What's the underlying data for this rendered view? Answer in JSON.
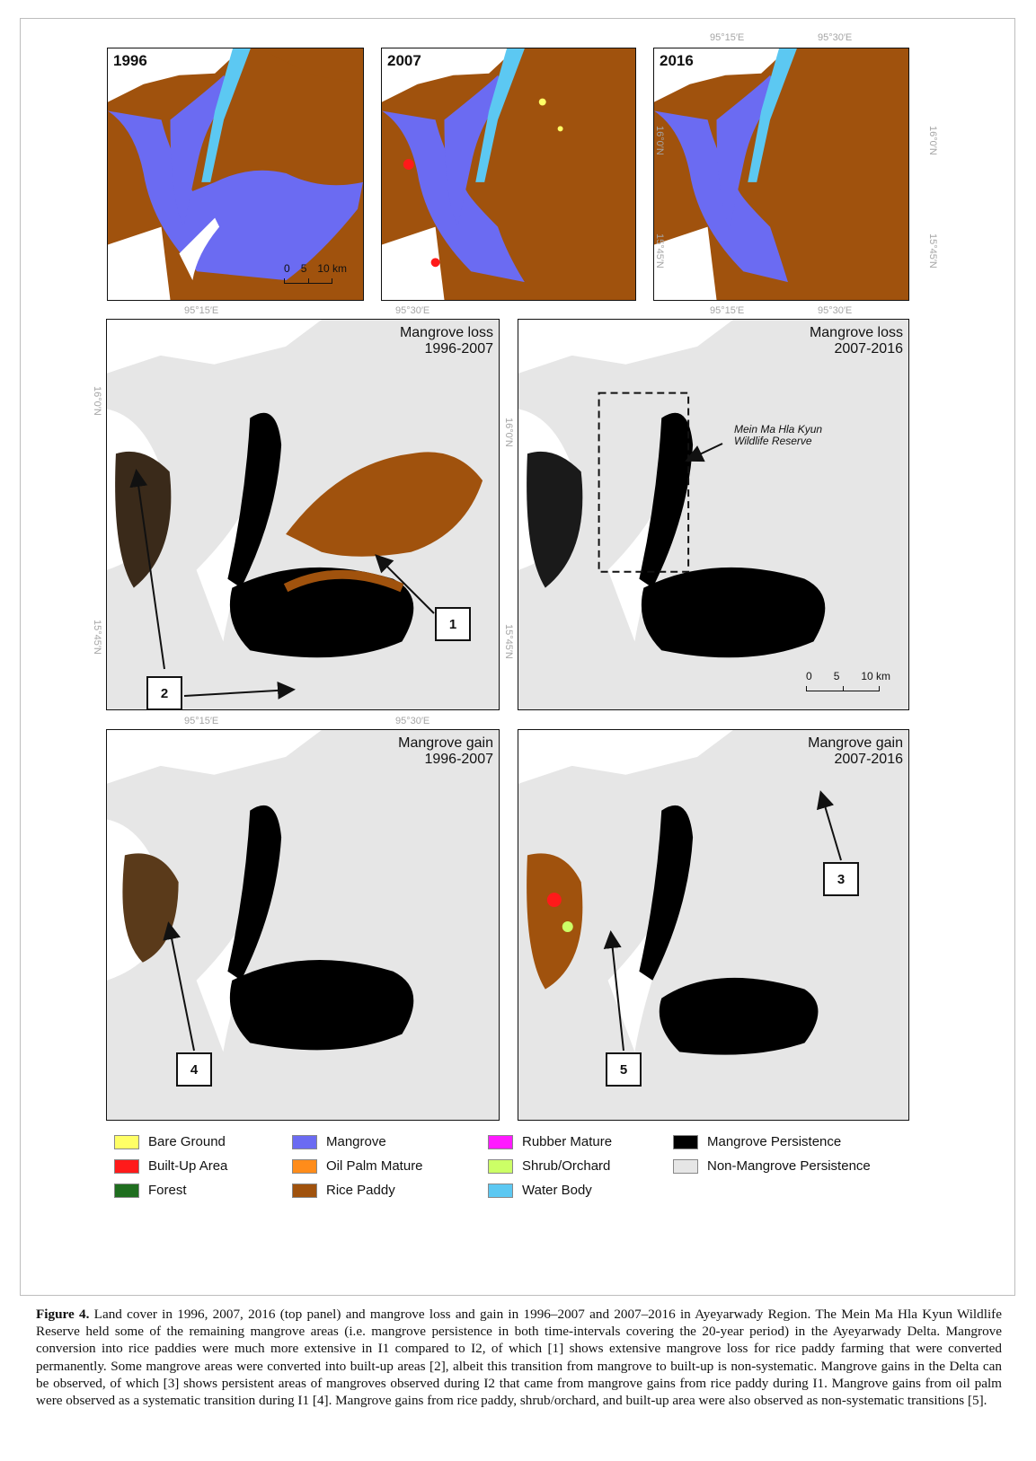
{
  "top_panels": [
    {
      "year": "1996"
    },
    {
      "year": "2007"
    },
    {
      "year": "2016"
    }
  ],
  "change_panels": [
    {
      "line1": "Mangrove loss",
      "line2": "1996-2007"
    },
    {
      "line1": "Mangrove loss",
      "line2": "2007-2016"
    },
    {
      "line1": "Mangrove gain",
      "line2": "1996-2007"
    },
    {
      "line1": "Mangrove gain",
      "line2": "2007-2016"
    }
  ],
  "coordinates": {
    "lon_1": "95°15′E",
    "lon_2": "95°30′E",
    "lat_1": "16°0′N",
    "lat_2": "15°45′N"
  },
  "scale_bar": {
    "t0": "0",
    "t1": "5",
    "t2": "10 km"
  },
  "reserve_label": {
    "line1": "Mein Ma Hla Kyun",
    "line2": "Wildlife Reserve"
  },
  "callouts": [
    "1",
    "2",
    "3",
    "4",
    "5"
  ],
  "legend": [
    {
      "label": "Bare Ground",
      "color": "#ffff66"
    },
    {
      "label": "Built-Up Area",
      "color": "#ff1a1a"
    },
    {
      "label": "Forest",
      "color": "#1f6e1f"
    },
    {
      "label": "Mangrove",
      "color": "#6b6bf2"
    },
    {
      "label": "Oil Palm Mature",
      "color": "#ff8c1a"
    },
    {
      "label": "Rice Paddy",
      "color": "#a0520d"
    },
    {
      "label": "Rubber Mature",
      "color": "#ff1aff"
    },
    {
      "label": "Shrub/Orchard",
      "color": "#ccff66"
    },
    {
      "label": "Water Body",
      "color": "#5cc8f2"
    },
    {
      "label": "Mangrove Persistence",
      "color": "#000000"
    },
    {
      "label": "Non-Mangrove Persistence",
      "color": "#e6e6e6"
    }
  ],
  "caption": {
    "label": "Figure 4.",
    "text": " Land cover in 1996, 2007, 2016 (top panel) and mangrove loss and gain in 1996–2007 and 2007–2016 in Ayeyarwady Region. The Mein Ma Hla Kyun Wildlife Reserve held some of the remaining mangrove areas (i.e. mangrove persistence in both time-intervals covering the 20-year period) in the Ayeyarwady Delta. Mangrove conversion into rice paddies were much more extensive in I1 compared to I2, of which [1] shows extensive mangrove loss for rice paddy farming that were converted permanently. Some mangrove areas were converted into built-up areas [2], albeit this transition from mangrove to built-up is non-systematic. Mangrove gains in the Delta can be observed, of which [3] shows persistent areas of mangroves observed during I2 that came from mangrove gains from rice paddy during I1. Mangrove gains from oil palm were observed as a systematic transition during I1 [4]. Mangrove gains from rice paddy, shrub/orchard, and built-up area were also observed as non-systematic transitions [5]."
  }
}
